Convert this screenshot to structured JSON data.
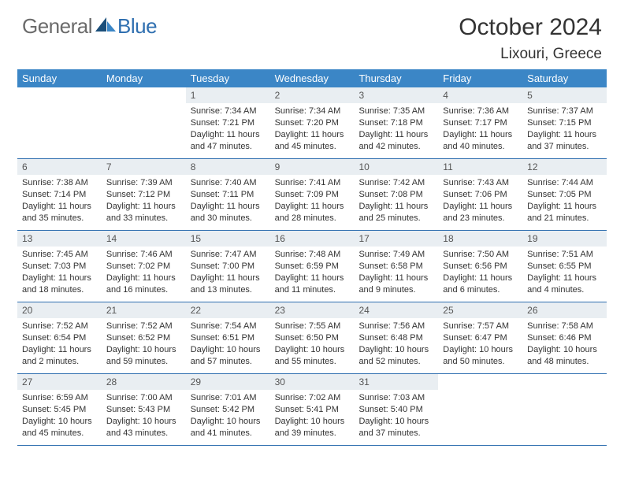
{
  "logo": {
    "general": "General",
    "blue": "Blue",
    "icon_color_dark": "#1a4e7a",
    "icon_color_light": "#3b86c6"
  },
  "title": "October 2024",
  "location": "Lixouri, Greece",
  "colors": {
    "header_bg": "#3b86c6",
    "header_text": "#ffffff",
    "daynum_bg": "#e9eef2",
    "row_border": "#2f6fb0",
    "body_text": "#333333"
  },
  "daysOfWeek": [
    "Sunday",
    "Monday",
    "Tuesday",
    "Wednesday",
    "Thursday",
    "Friday",
    "Saturday"
  ],
  "weeks": [
    [
      null,
      null,
      {
        "n": "1",
        "sunrise": "Sunrise: 7:34 AM",
        "sunset": "Sunset: 7:21 PM",
        "daylight": "Daylight: 11 hours and 47 minutes."
      },
      {
        "n": "2",
        "sunrise": "Sunrise: 7:34 AM",
        "sunset": "Sunset: 7:20 PM",
        "daylight": "Daylight: 11 hours and 45 minutes."
      },
      {
        "n": "3",
        "sunrise": "Sunrise: 7:35 AM",
        "sunset": "Sunset: 7:18 PM",
        "daylight": "Daylight: 11 hours and 42 minutes."
      },
      {
        "n": "4",
        "sunrise": "Sunrise: 7:36 AM",
        "sunset": "Sunset: 7:17 PM",
        "daylight": "Daylight: 11 hours and 40 minutes."
      },
      {
        "n": "5",
        "sunrise": "Sunrise: 7:37 AM",
        "sunset": "Sunset: 7:15 PM",
        "daylight": "Daylight: 11 hours and 37 minutes."
      }
    ],
    [
      {
        "n": "6",
        "sunrise": "Sunrise: 7:38 AM",
        "sunset": "Sunset: 7:14 PM",
        "daylight": "Daylight: 11 hours and 35 minutes."
      },
      {
        "n": "7",
        "sunrise": "Sunrise: 7:39 AM",
        "sunset": "Sunset: 7:12 PM",
        "daylight": "Daylight: 11 hours and 33 minutes."
      },
      {
        "n": "8",
        "sunrise": "Sunrise: 7:40 AM",
        "sunset": "Sunset: 7:11 PM",
        "daylight": "Daylight: 11 hours and 30 minutes."
      },
      {
        "n": "9",
        "sunrise": "Sunrise: 7:41 AM",
        "sunset": "Sunset: 7:09 PM",
        "daylight": "Daylight: 11 hours and 28 minutes."
      },
      {
        "n": "10",
        "sunrise": "Sunrise: 7:42 AM",
        "sunset": "Sunset: 7:08 PM",
        "daylight": "Daylight: 11 hours and 25 minutes."
      },
      {
        "n": "11",
        "sunrise": "Sunrise: 7:43 AM",
        "sunset": "Sunset: 7:06 PM",
        "daylight": "Daylight: 11 hours and 23 minutes."
      },
      {
        "n": "12",
        "sunrise": "Sunrise: 7:44 AM",
        "sunset": "Sunset: 7:05 PM",
        "daylight": "Daylight: 11 hours and 21 minutes."
      }
    ],
    [
      {
        "n": "13",
        "sunrise": "Sunrise: 7:45 AM",
        "sunset": "Sunset: 7:03 PM",
        "daylight": "Daylight: 11 hours and 18 minutes."
      },
      {
        "n": "14",
        "sunrise": "Sunrise: 7:46 AM",
        "sunset": "Sunset: 7:02 PM",
        "daylight": "Daylight: 11 hours and 16 minutes."
      },
      {
        "n": "15",
        "sunrise": "Sunrise: 7:47 AM",
        "sunset": "Sunset: 7:00 PM",
        "daylight": "Daylight: 11 hours and 13 minutes."
      },
      {
        "n": "16",
        "sunrise": "Sunrise: 7:48 AM",
        "sunset": "Sunset: 6:59 PM",
        "daylight": "Daylight: 11 hours and 11 minutes."
      },
      {
        "n": "17",
        "sunrise": "Sunrise: 7:49 AM",
        "sunset": "Sunset: 6:58 PM",
        "daylight": "Daylight: 11 hours and 9 minutes."
      },
      {
        "n": "18",
        "sunrise": "Sunrise: 7:50 AM",
        "sunset": "Sunset: 6:56 PM",
        "daylight": "Daylight: 11 hours and 6 minutes."
      },
      {
        "n": "19",
        "sunrise": "Sunrise: 7:51 AM",
        "sunset": "Sunset: 6:55 PM",
        "daylight": "Daylight: 11 hours and 4 minutes."
      }
    ],
    [
      {
        "n": "20",
        "sunrise": "Sunrise: 7:52 AM",
        "sunset": "Sunset: 6:54 PM",
        "daylight": "Daylight: 11 hours and 2 minutes."
      },
      {
        "n": "21",
        "sunrise": "Sunrise: 7:52 AM",
        "sunset": "Sunset: 6:52 PM",
        "daylight": "Daylight: 10 hours and 59 minutes."
      },
      {
        "n": "22",
        "sunrise": "Sunrise: 7:54 AM",
        "sunset": "Sunset: 6:51 PM",
        "daylight": "Daylight: 10 hours and 57 minutes."
      },
      {
        "n": "23",
        "sunrise": "Sunrise: 7:55 AM",
        "sunset": "Sunset: 6:50 PM",
        "daylight": "Daylight: 10 hours and 55 minutes."
      },
      {
        "n": "24",
        "sunrise": "Sunrise: 7:56 AM",
        "sunset": "Sunset: 6:48 PM",
        "daylight": "Daylight: 10 hours and 52 minutes."
      },
      {
        "n": "25",
        "sunrise": "Sunrise: 7:57 AM",
        "sunset": "Sunset: 6:47 PM",
        "daylight": "Daylight: 10 hours and 50 minutes."
      },
      {
        "n": "26",
        "sunrise": "Sunrise: 7:58 AM",
        "sunset": "Sunset: 6:46 PM",
        "daylight": "Daylight: 10 hours and 48 minutes."
      }
    ],
    [
      {
        "n": "27",
        "sunrise": "Sunrise: 6:59 AM",
        "sunset": "Sunset: 5:45 PM",
        "daylight": "Daylight: 10 hours and 45 minutes."
      },
      {
        "n": "28",
        "sunrise": "Sunrise: 7:00 AM",
        "sunset": "Sunset: 5:43 PM",
        "daylight": "Daylight: 10 hours and 43 minutes."
      },
      {
        "n": "29",
        "sunrise": "Sunrise: 7:01 AM",
        "sunset": "Sunset: 5:42 PM",
        "daylight": "Daylight: 10 hours and 41 minutes."
      },
      {
        "n": "30",
        "sunrise": "Sunrise: 7:02 AM",
        "sunset": "Sunset: 5:41 PM",
        "daylight": "Daylight: 10 hours and 39 minutes."
      },
      {
        "n": "31",
        "sunrise": "Sunrise: 7:03 AM",
        "sunset": "Sunset: 5:40 PM",
        "daylight": "Daylight: 10 hours and 37 minutes."
      },
      null,
      null
    ]
  ]
}
